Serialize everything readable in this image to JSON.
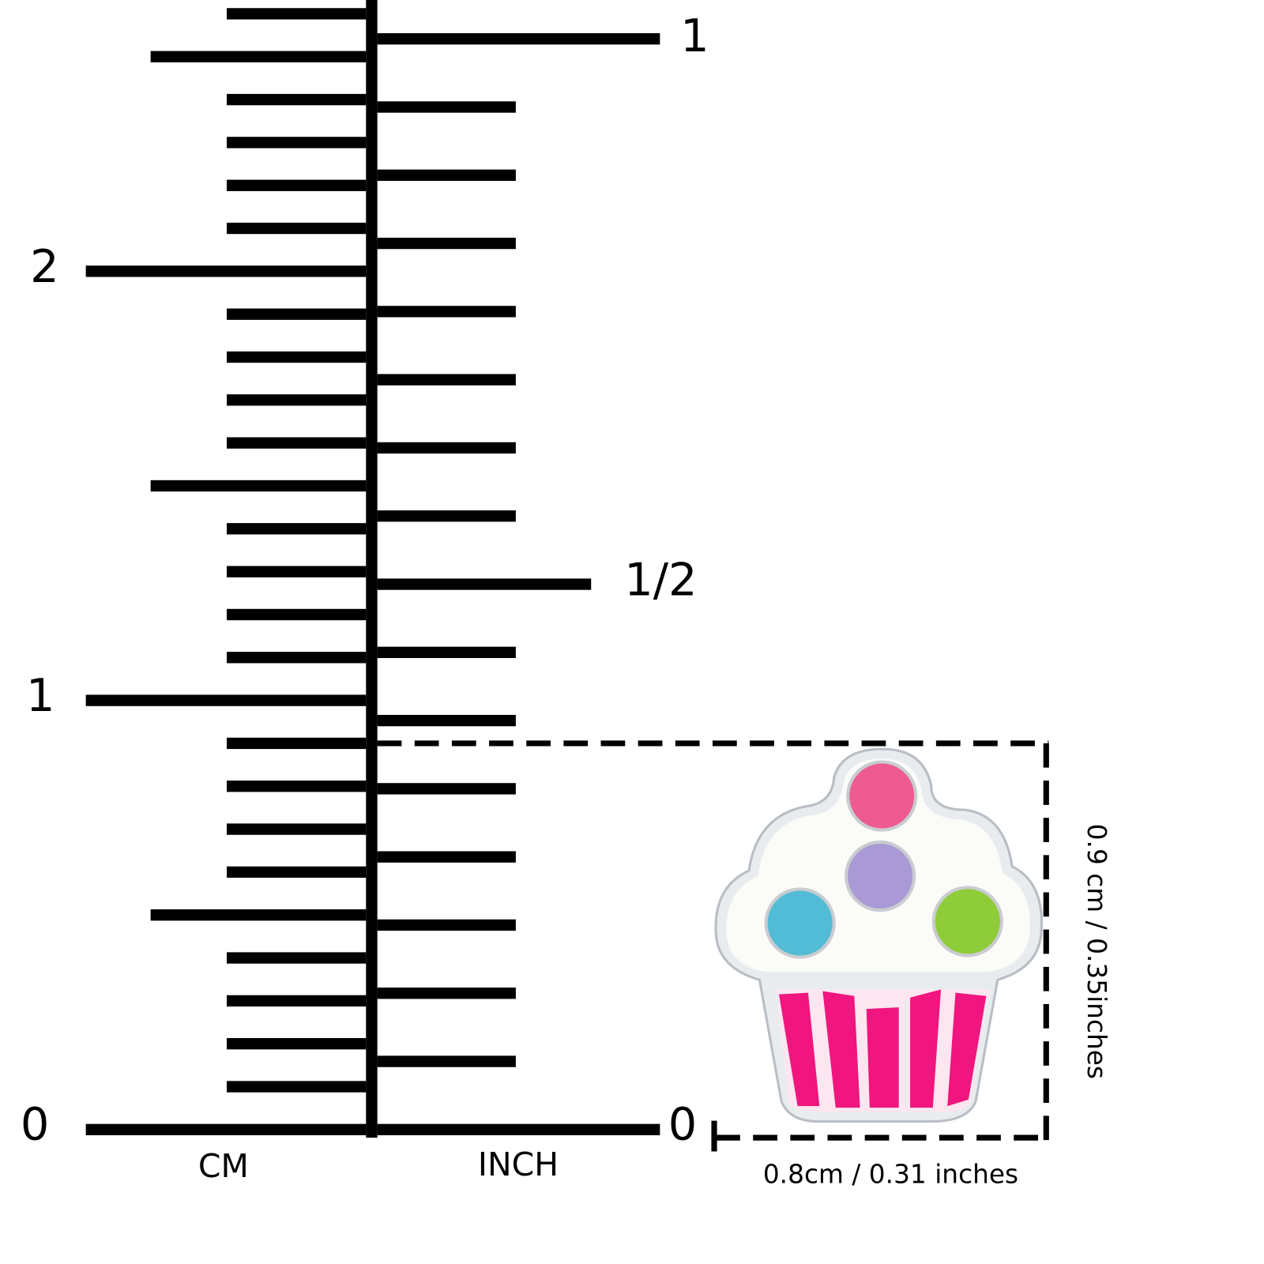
{
  "ruler": {
    "cm_label": "CM",
    "inch_label": "INCH",
    "cm_marks": [
      "0",
      "1",
      "2"
    ],
    "inch_marks": [
      "0",
      "1/2",
      "1"
    ]
  },
  "dimensions": {
    "width": "0.8cm / 0.31 inches",
    "height": "0.9 cm / 0.35inches"
  }
}
